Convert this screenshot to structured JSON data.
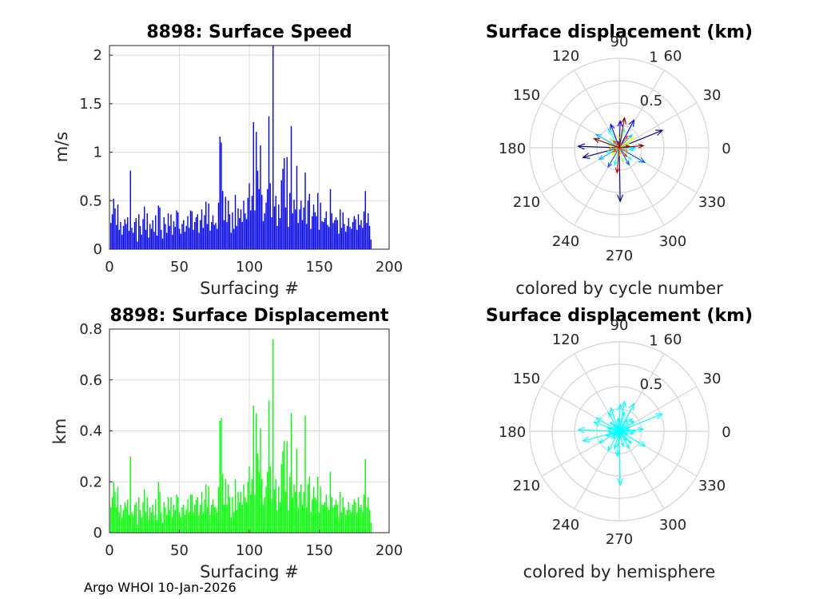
{
  "chart_data": [
    {
      "type": "bar",
      "title": "8898: Surface Speed",
      "xlabel": "Surfacing #",
      "ylabel": "m/s",
      "xlim": [
        0,
        200
      ],
      "ylim": [
        0,
        2.1
      ],
      "xticks": [
        "0",
        "50",
        "100",
        "150",
        "200"
      ],
      "yticks": [
        "0",
        "0.5",
        "1",
        "1.5",
        "2"
      ],
      "color": "#0000ff",
      "grid": true,
      "x_start": 1,
      "values": [
        0.27,
        0.36,
        0.52,
        0.42,
        0.25,
        0.46,
        0.2,
        0.28,
        0.15,
        0.24,
        0.31,
        0.26,
        0.33,
        0.19,
        0.81,
        0.22,
        0.17,
        0.28,
        0.32,
        0.08,
        0.36,
        0.24,
        0.15,
        0.31,
        0.44,
        0.2,
        0.37,
        0.12,
        0.26,
        0.21,
        0.3,
        0.18,
        0.35,
        0.14,
        0.45,
        0.43,
        0.2,
        0.11,
        0.33,
        0.26,
        0.17,
        0.37,
        0.24,
        0.36,
        0.15,
        0.29,
        0.23,
        0.4,
        0.38,
        0.21,
        0.16,
        0.26,
        0.3,
        0.18,
        0.24,
        0.34,
        0.22,
        0.4,
        0.39,
        0.2,
        0.28,
        0.33,
        0.36,
        0.17,
        0.3,
        0.41,
        0.22,
        0.35,
        0.49,
        0.26,
        0.47,
        0.19,
        0.28,
        0.35,
        0.25,
        0.27,
        0.21,
        0.48,
        1.16,
        1.1,
        0.6,
        0.3,
        0.54,
        0.28,
        0.5,
        0.36,
        0.17,
        0.38,
        0.21,
        0.56,
        0.24,
        0.42,
        0.32,
        0.41,
        0.28,
        0.5,
        0.37,
        0.31,
        0.53,
        0.68,
        0.4,
        0.55,
        1.31,
        0.4,
        1.21,
        0.81,
        0.62,
        1.07,
        0.56,
        0.29,
        0.37,
        0.48,
        0.62,
        1.37,
        0.68,
        0.33,
        2.1,
        0.44,
        0.55,
        0.24,
        0.46,
        0.32,
        0.71,
        0.83,
        0.94,
        0.43,
        0.95,
        0.23,
        0.58,
        1.27,
        0.37,
        0.51,
        0.41,
        0.86,
        0.27,
        0.41,
        0.5,
        0.3,
        0.43,
        0.79,
        0.26,
        0.5,
        0.57,
        0.21,
        0.34,
        0.46,
        0.38,
        0.34,
        0.58,
        0.2,
        0.48,
        0.29,
        0.28,
        0.32,
        0.39,
        0.25,
        0.23,
        0.62,
        0.37,
        0.27,
        0.3,
        0.33,
        0.3,
        0.16,
        0.41,
        0.22,
        0.38,
        0.26,
        0.18,
        0.24,
        0.32,
        0.23,
        0.21,
        0.28,
        0.34,
        0.31,
        0.2,
        0.36,
        0.25,
        0.3,
        0.22,
        0.39,
        0.6,
        0.27,
        0.37,
        0.24,
        0.1
      ]
    },
    {
      "type": "bar",
      "title": "8898: Surface Displacement",
      "xlabel": "Surfacing #",
      "ylabel": "km",
      "xlim": [
        0,
        200
      ],
      "ylim": [
        0,
        0.8
      ],
      "xticks": [
        "0",
        "50",
        "100",
        "150",
        "200"
      ],
      "yticks": [
        "0",
        "0.2",
        "0.4",
        "0.6",
        "0.8"
      ],
      "color": "#00ff00",
      "grid": true,
      "x_start": 1,
      "values": [
        0.1,
        0.14,
        0.2,
        0.16,
        0.1,
        0.18,
        0.08,
        0.11,
        0.06,
        0.09,
        0.12,
        0.1,
        0.13,
        0.07,
        0.3,
        0.08,
        0.07,
        0.11,
        0.12,
        0.03,
        0.14,
        0.09,
        0.06,
        0.12,
        0.17,
        0.08,
        0.14,
        0.05,
        0.1,
        0.08,
        0.11,
        0.07,
        0.13,
        0.05,
        0.2,
        0.16,
        0.08,
        0.04,
        0.12,
        0.1,
        0.07,
        0.14,
        0.09,
        0.14,
        0.06,
        0.11,
        0.09,
        0.15,
        0.14,
        0.08,
        0.06,
        0.1,
        0.11,
        0.07,
        0.09,
        0.13,
        0.08,
        0.15,
        0.15,
        0.08,
        0.11,
        0.13,
        0.14,
        0.07,
        0.11,
        0.16,
        0.08,
        0.13,
        0.19,
        0.1,
        0.18,
        0.07,
        0.11,
        0.13,
        0.1,
        0.1,
        0.08,
        0.18,
        0.44,
        0.45,
        0.23,
        0.11,
        0.21,
        0.11,
        0.19,
        0.14,
        0.06,
        0.14,
        0.08,
        0.21,
        0.09,
        0.16,
        0.12,
        0.16,
        0.11,
        0.19,
        0.14,
        0.12,
        0.2,
        0.26,
        0.15,
        0.21,
        0.5,
        0.15,
        0.47,
        0.31,
        0.24,
        0.41,
        0.21,
        0.11,
        0.14,
        0.18,
        0.24,
        0.52,
        0.26,
        0.13,
        0.76,
        0.17,
        0.21,
        0.09,
        0.18,
        0.12,
        0.27,
        0.32,
        0.36,
        0.16,
        0.36,
        0.09,
        0.22,
        0.47,
        0.14,
        0.19,
        0.16,
        0.33,
        0.1,
        0.16,
        0.19,
        0.11,
        0.16,
        0.46,
        0.1,
        0.19,
        0.22,
        0.08,
        0.13,
        0.18,
        0.14,
        0.13,
        0.22,
        0.08,
        0.18,
        0.11,
        0.11,
        0.12,
        0.15,
        0.1,
        0.09,
        0.24,
        0.14,
        0.1,
        0.11,
        0.13,
        0.11,
        0.06,
        0.16,
        0.08,
        0.14,
        0.1,
        0.07,
        0.09,
        0.12,
        0.09,
        0.08,
        0.11,
        0.13,
        0.12,
        0.08,
        0.14,
        0.1,
        0.11,
        0.08,
        0.15,
        0.29,
        0.1,
        0.14,
        0.09,
        0.04
      ]
    },
    {
      "type": "polar-vector",
      "title": "Surface displacement (km)",
      "subtitle": "colored by cycle number",
      "rmax": 1,
      "rticks": [
        "0.5",
        "1"
      ],
      "angle_labels": [
        "0",
        "30",
        "60",
        "90",
        "120",
        "150",
        "180",
        "210",
        "240",
        "270",
        "300",
        "330"
      ],
      "color_mode": "cycle",
      "vectors": [
        {
          "r": 0.52,
          "theta": 22
        },
        {
          "r": 0.46,
          "theta": 178
        },
        {
          "r": 0.6,
          "theta": 271
        },
        {
          "r": 0.42,
          "theta": 195
        },
        {
          "r": 0.3,
          "theta": 88
        },
        {
          "r": 0.35,
          "theta": 62
        },
        {
          "r": 0.28,
          "theta": 110
        },
        {
          "r": 0.33,
          "theta": 330
        },
        {
          "r": 0.25,
          "theta": 240
        },
        {
          "r": 0.22,
          "theta": 300
        },
        {
          "r": 0.3,
          "theta": 150
        },
        {
          "r": 0.2,
          "theta": 45
        },
        {
          "r": 0.26,
          "theta": 210
        },
        {
          "r": 0.18,
          "theta": 0
        },
        {
          "r": 0.24,
          "theta": 120
        },
        {
          "r": 0.2,
          "theta": 255
        },
        {
          "r": 0.16,
          "theta": 350
        },
        {
          "r": 0.22,
          "theta": 75
        },
        {
          "r": 0.15,
          "theta": 200
        },
        {
          "r": 0.19,
          "theta": 315
        },
        {
          "r": 0.14,
          "theta": 135
        },
        {
          "r": 0.12,
          "theta": 20
        },
        {
          "r": 0.17,
          "theta": 285
        },
        {
          "r": 0.13,
          "theta": 165
        },
        {
          "r": 0.2,
          "theta": 35
        },
        {
          "r": 0.11,
          "theta": 225
        },
        {
          "r": 0.14,
          "theta": 95
        },
        {
          "r": 0.1,
          "theta": 340
        },
        {
          "r": 0.12,
          "theta": 185
        },
        {
          "r": 0.09,
          "theta": 270
        },
        {
          "r": 0.16,
          "theta": 55
        },
        {
          "r": 0.1,
          "theta": 130
        },
        {
          "r": 0.13,
          "theta": 310
        },
        {
          "r": 0.08,
          "theta": 215
        },
        {
          "r": 0.11,
          "theta": 10
        },
        {
          "r": 0.07,
          "theta": 100
        },
        {
          "r": 0.28,
          "theta": 265
        },
        {
          "r": 0.34,
          "theta": 80
        },
        {
          "r": 0.3,
          "theta": 160
        },
        {
          "r": 0.27,
          "theta": 5
        }
      ]
    },
    {
      "type": "polar-vector",
      "title": "Surface displacement (km)",
      "subtitle": "colored by hemisphere",
      "rmax": 1,
      "rticks": [
        "0.5",
        "1"
      ],
      "angle_labels": [
        "0",
        "30",
        "60",
        "90",
        "120",
        "150",
        "180",
        "210",
        "240",
        "270",
        "300",
        "330"
      ],
      "color_mode": "single",
      "color": "#00ffff",
      "vectors": [
        {
          "r": 0.52,
          "theta": 22
        },
        {
          "r": 0.46,
          "theta": 178
        },
        {
          "r": 0.6,
          "theta": 271
        },
        {
          "r": 0.42,
          "theta": 195
        },
        {
          "r": 0.3,
          "theta": 88
        },
        {
          "r": 0.35,
          "theta": 62
        },
        {
          "r": 0.28,
          "theta": 110
        },
        {
          "r": 0.33,
          "theta": 330
        },
        {
          "r": 0.25,
          "theta": 240
        },
        {
          "r": 0.22,
          "theta": 300
        },
        {
          "r": 0.3,
          "theta": 150
        },
        {
          "r": 0.2,
          "theta": 45
        },
        {
          "r": 0.26,
          "theta": 210
        },
        {
          "r": 0.18,
          "theta": 0
        },
        {
          "r": 0.24,
          "theta": 120
        },
        {
          "r": 0.2,
          "theta": 255
        },
        {
          "r": 0.16,
          "theta": 350
        },
        {
          "r": 0.22,
          "theta": 75
        },
        {
          "r": 0.15,
          "theta": 200
        },
        {
          "r": 0.19,
          "theta": 315
        },
        {
          "r": 0.14,
          "theta": 135
        },
        {
          "r": 0.12,
          "theta": 20
        },
        {
          "r": 0.17,
          "theta": 285
        },
        {
          "r": 0.13,
          "theta": 165
        },
        {
          "r": 0.2,
          "theta": 35
        },
        {
          "r": 0.11,
          "theta": 225
        },
        {
          "r": 0.14,
          "theta": 95
        },
        {
          "r": 0.1,
          "theta": 340
        },
        {
          "r": 0.12,
          "theta": 185
        },
        {
          "r": 0.09,
          "theta": 270
        },
        {
          "r": 0.16,
          "theta": 55
        },
        {
          "r": 0.1,
          "theta": 130
        },
        {
          "r": 0.13,
          "theta": 310
        },
        {
          "r": 0.08,
          "theta": 215
        },
        {
          "r": 0.11,
          "theta": 10
        },
        {
          "r": 0.07,
          "theta": 100
        },
        {
          "r": 0.28,
          "theta": 265
        },
        {
          "r": 0.34,
          "theta": 80
        },
        {
          "r": 0.3,
          "theta": 160
        },
        {
          "r": 0.27,
          "theta": 5
        }
      ]
    }
  ],
  "footer": "Argo WHOI 10-Jan-2026"
}
